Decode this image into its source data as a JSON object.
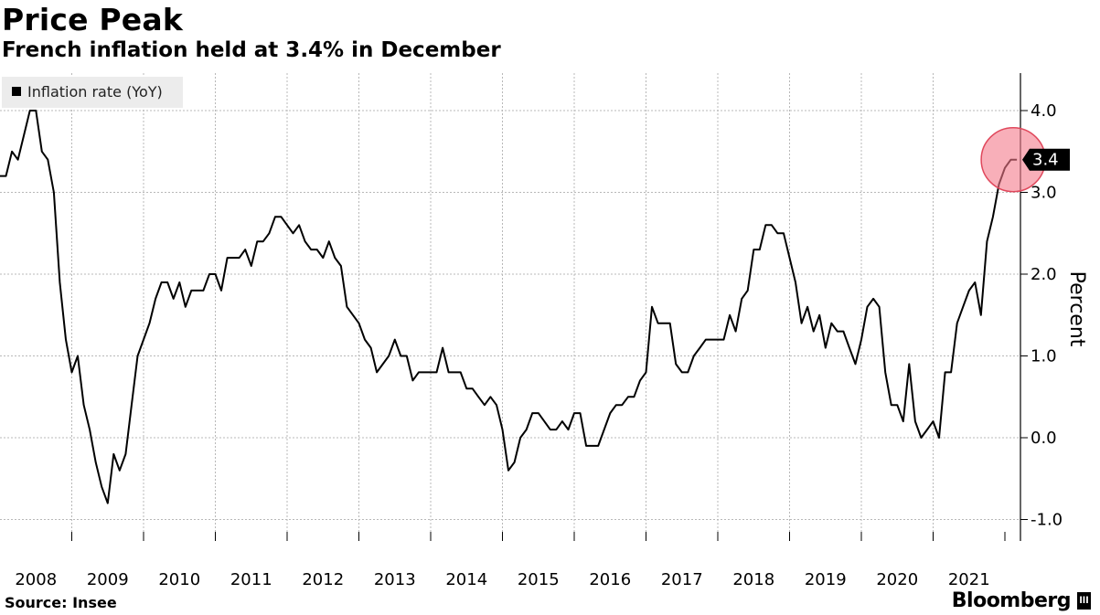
{
  "header": {
    "title": "Price Peak",
    "subtitle": "French inflation held at 3.4% in December"
  },
  "footer": {
    "source": "Source: Insee",
    "brand": "Bloomberg",
    "brand_mark": "lll"
  },
  "colors": {
    "line": "#000000",
    "highlight": "#f47a8a",
    "grid": "#b8b8b8"
  },
  "chart_data": {
    "type": "line",
    "title": "Price Peak",
    "subtitle": "French inflation held at 3.4% in December",
    "ylabel": "Percent",
    "xlabel": "",
    "ylim": [
      -1.3,
      4.5
    ],
    "xlim": [
      2008.0,
      2022.0
    ],
    "y_ticks": [
      4.0,
      3.0,
      2.0,
      1.0,
      0.0,
      -1.0
    ],
    "y_tick_labels": [
      "4.0",
      "3.0",
      "2.0",
      "1.0",
      "0.0",
      "-1.0"
    ],
    "x_tick_labels": [
      "2008",
      "2009",
      "2010",
      "2011",
      "2012",
      "2013",
      "2014",
      "2015",
      "2016",
      "2017",
      "2018",
      "2019",
      "2020",
      "2021"
    ],
    "x_tick_values": [
      2008,
      2009,
      2010,
      2011,
      2012,
      2013,
      2014,
      2015,
      2016,
      2017,
      2018,
      2019,
      2020,
      2021
    ],
    "grid": true,
    "legend": {
      "position": "top-left",
      "entries": [
        "Inflation rate (YoY)"
      ]
    },
    "last_value_label": "3.4",
    "series": [
      {
        "name": "Inflation rate (YoY)",
        "start": [
          2008,
          1
        ],
        "frequency": "monthly",
        "values": [
          3.2,
          3.2,
          3.5,
          3.4,
          3.7,
          4.0,
          4.0,
          3.5,
          3.4,
          3.0,
          1.9,
          1.2,
          0.8,
          1.0,
          0.4,
          0.1,
          -0.3,
          -0.6,
          -0.8,
          -0.2,
          -0.4,
          -0.2,
          0.4,
          1.0,
          1.2,
          1.4,
          1.7,
          1.9,
          1.9,
          1.7,
          1.9,
          1.6,
          1.8,
          1.8,
          1.8,
          2.0,
          2.0,
          1.8,
          2.2,
          2.2,
          2.2,
          2.3,
          2.1,
          2.4,
          2.4,
          2.5,
          2.7,
          2.7,
          2.6,
          2.5,
          2.6,
          2.4,
          2.3,
          2.3,
          2.2,
          2.4,
          2.2,
          2.1,
          1.6,
          1.5,
          1.4,
          1.2,
          1.1,
          0.8,
          0.9,
          1.0,
          1.2,
          1.0,
          1.0,
          0.7,
          0.8,
          0.8,
          0.8,
          0.8,
          1.1,
          0.8,
          0.8,
          0.8,
          0.6,
          0.6,
          0.5,
          0.4,
          0.5,
          0.4,
          0.1,
          -0.4,
          -0.3,
          0.0,
          0.1,
          0.3,
          0.3,
          0.2,
          0.1,
          0.1,
          0.2,
          0.1,
          0.3,
          0.3,
          -0.1,
          -0.1,
          -0.1,
          0.1,
          0.3,
          0.4,
          0.4,
          0.5,
          0.5,
          0.7,
          0.8,
          1.6,
          1.4,
          1.4,
          1.4,
          0.9,
          0.8,
          0.8,
          1.0,
          1.1,
          1.2,
          1.2,
          1.2,
          1.2,
          1.5,
          1.3,
          1.7,
          1.8,
          2.3,
          2.3,
          2.6,
          2.6,
          2.5,
          2.5,
          2.2,
          1.9,
          1.4,
          1.6,
          1.3,
          1.5,
          1.1,
          1.4,
          1.3,
          1.3,
          1.1,
          0.9,
          1.2,
          1.6,
          1.7,
          1.6,
          0.8,
          0.4,
          0.4,
          0.2,
          0.9,
          0.2,
          0.0,
          0.1,
          0.2,
          0.0,
          0.8,
          0.8,
          1.4,
          1.6,
          1.8,
          1.9,
          1.5,
          2.4,
          2.7,
          3.1,
          3.3,
          3.4,
          3.4
        ]
      }
    ]
  }
}
